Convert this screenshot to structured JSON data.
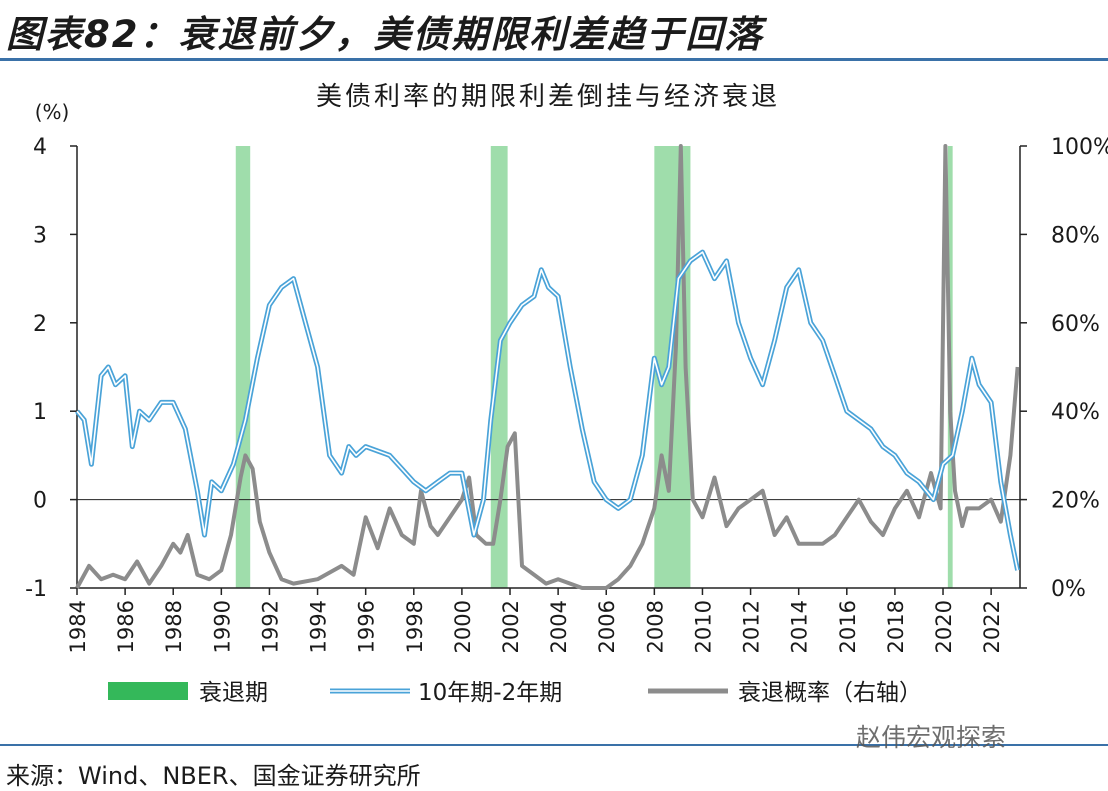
{
  "header": {
    "title": "图表82：衰退前夕，美债期限利差趋于回落"
  },
  "source": {
    "text": "来源：Wind、NBER、国金证券研究所"
  },
  "watermark": {
    "text": "赵伟宏观探索"
  },
  "chart_data": {
    "type": "line",
    "title": "美债利率的期限利差倒挂与经济衰退",
    "y_unit_label": "(%)",
    "ylim": [
      -1,
      4
    ],
    "y_ticks": [
      "4",
      "3",
      "2",
      "1",
      "0",
      "-1"
    ],
    "y2lim": [
      0,
      100
    ],
    "y2_ticks": [
      "100%",
      "80%",
      "60%",
      "40%",
      "20%",
      "0%"
    ],
    "xlim": [
      1984,
      2023.2
    ],
    "x_ticks": [
      "1984",
      "1986",
      "1988",
      "1990",
      "1992",
      "1994",
      "1996",
      "1998",
      "2000",
      "2002",
      "2004",
      "2006",
      "2008",
      "2010",
      "2012",
      "2014",
      "2016",
      "2018",
      "2020",
      "2022"
    ],
    "grid": false,
    "legend_position": "bottom",
    "legend": [
      "衰退期",
      "10年期-2年期",
      "衰退概率（右轴）"
    ],
    "recessions": [
      {
        "start": 1990.6,
        "end": 1991.2
      },
      {
        "start": 2001.2,
        "end": 2001.9
      },
      {
        "start": 2008.0,
        "end": 2009.5
      },
      {
        "start": 2020.2,
        "end": 2020.4
      }
    ],
    "series": [
      {
        "name": "10年期-2年期",
        "axis": "left",
        "color": "#4aa3d8",
        "x": [
          1984.0,
          1984.3,
          1984.6,
          1985.0,
          1985.3,
          1985.6,
          1986.0,
          1986.3,
          1986.6,
          1987.0,
          1987.5,
          1988.0,
          1988.5,
          1989.0,
          1989.3,
          1989.6,
          1990.0,
          1990.5,
          1991.0,
          1991.5,
          1992.0,
          1992.5,
          1993.0,
          1993.5,
          1994.0,
          1994.5,
          1995.0,
          1995.3,
          1995.6,
          1996.0,
          1996.5,
          1997.0,
          1997.5,
          1998.0,
          1998.5,
          1999.0,
          1999.5,
          2000.0,
          2000.5,
          2000.9,
          2001.2,
          2001.6,
          2002.0,
          2002.5,
          2003.0,
          2003.3,
          2003.6,
          2004.0,
          2004.5,
          2005.0,
          2005.5,
          2006.0,
          2006.5,
          2007.0,
          2007.5,
          2008.0,
          2008.3,
          2008.6,
          2009.0,
          2009.5,
          2010.0,
          2010.5,
          2011.0,
          2011.5,
          2012.0,
          2012.5,
          2013.0,
          2013.5,
          2014.0,
          2014.5,
          2015.0,
          2015.5,
          2016.0,
          2016.5,
          2017.0,
          2017.5,
          2018.0,
          2018.5,
          2019.0,
          2019.3,
          2019.6,
          2020.0,
          2020.4,
          2020.8,
          2021.2,
          2021.5,
          2022.0,
          2022.4,
          2022.8,
          2023.1
        ],
        "values": [
          1.0,
          0.9,
          0.4,
          1.4,
          1.5,
          1.3,
          1.4,
          0.6,
          1.0,
          0.9,
          1.1,
          1.1,
          0.8,
          0.1,
          -0.4,
          0.2,
          0.1,
          0.4,
          0.9,
          1.6,
          2.2,
          2.4,
          2.5,
          2.0,
          1.5,
          0.5,
          0.3,
          0.6,
          0.5,
          0.6,
          0.55,
          0.5,
          0.35,
          0.2,
          0.1,
          0.2,
          0.3,
          0.3,
          -0.4,
          0.0,
          0.9,
          1.8,
          2.0,
          2.2,
          2.3,
          2.6,
          2.4,
          2.3,
          1.5,
          0.8,
          0.2,
          0.0,
          -0.1,
          0.0,
          0.5,
          1.6,
          1.3,
          1.5,
          2.5,
          2.7,
          2.8,
          2.5,
          2.7,
          2.0,
          1.6,
          1.3,
          1.8,
          2.4,
          2.6,
          2.0,
          1.8,
          1.4,
          1.0,
          0.9,
          0.8,
          0.6,
          0.5,
          0.3,
          0.2,
          0.1,
          0.0,
          0.4,
          0.5,
          1.0,
          1.6,
          1.3,
          1.1,
          0.2,
          -0.4,
          -0.8
        ]
      },
      {
        "name": "衰退概率（右轴）",
        "axis": "right",
        "color": "#8c8c8c",
        "x": [
          1984.0,
          1984.5,
          1985.0,
          1985.5,
          1986.0,
          1986.5,
          1987.0,
          1987.5,
          1988.0,
          1988.3,
          1988.6,
          1989.0,
          1989.5,
          1990.0,
          1990.4,
          1990.8,
          1991.0,
          1991.3,
          1991.6,
          1992.0,
          1992.5,
          1993.0,
          1994.0,
          1995.0,
          1995.5,
          1996.0,
          1996.5,
          1997.0,
          1997.5,
          1998.0,
          1998.3,
          1998.7,
          1999.0,
          1999.5,
          2000.0,
          2000.3,
          2000.6,
          2001.0,
          2001.3,
          2001.6,
          2001.9,
          2002.2,
          2002.5,
          2003.0,
          2003.5,
          2004.0,
          2005.0,
          2006.0,
          2006.5,
          2007.0,
          2007.5,
          2008.0,
          2008.3,
          2008.6,
          2008.9,
          2009.1,
          2009.3,
          2009.6,
          2010.0,
          2010.5,
          2011.0,
          2011.5,
          2012.0,
          2012.5,
          2013.0,
          2013.5,
          2014.0,
          2015.0,
          2015.5,
          2016.0,
          2016.5,
          2017.0,
          2017.5,
          2018.0,
          2018.5,
          2019.0,
          2019.5,
          2019.9,
          2020.1,
          2020.3,
          2020.5,
          2020.8,
          2021.0,
          2021.5,
          2022.0,
          2022.4,
          2022.8,
          2023.1
        ],
        "values": [
          0,
          5,
          2,
          3,
          2,
          6,
          1,
          5,
          10,
          8,
          12,
          3,
          2,
          4,
          12,
          25,
          30,
          27,
          15,
          8,
          2,
          1,
          2,
          5,
          3,
          16,
          9,
          18,
          12,
          10,
          22,
          14,
          12,
          16,
          20,
          25,
          12,
          10,
          10,
          20,
          32,
          35,
          5,
          3,
          1,
          2,
          0,
          0,
          2,
          5,
          10,
          18,
          30,
          22,
          55,
          100,
          50,
          20,
          16,
          25,
          14,
          18,
          20,
          22,
          12,
          16,
          10,
          10,
          12,
          16,
          20,
          15,
          12,
          18,
          22,
          16,
          26,
          18,
          100,
          40,
          22,
          14,
          18,
          18,
          20,
          15,
          30,
          50
        ]
      }
    ]
  }
}
